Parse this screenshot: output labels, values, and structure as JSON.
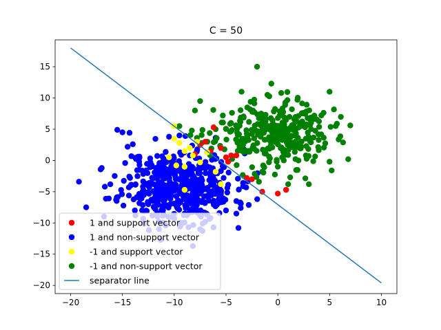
{
  "chart_data": {
    "type": "scatter",
    "title": "C = 50",
    "xlabel": "",
    "ylabel": "",
    "xlim": [
      -21.5,
      11.5
    ],
    "ylim": [
      -21.3,
      19.3
    ],
    "xticks": [
      -20,
      -15,
      -10,
      -5,
      0,
      5,
      10
    ],
    "yticks": [
      -20,
      -15,
      -10,
      -5,
      0,
      5,
      10,
      15
    ],
    "grid": false,
    "legend_position": "lower-left",
    "line": {
      "name": "separator line",
      "color": "#1f77b4",
      "x": [
        -20,
        10
      ],
      "y": [
        18.0,
        -19.6
      ]
    },
    "series": [
      {
        "name": "1 and non-support vector",
        "color": "#0000ff",
        "centroid": [
          -9.5,
          -4.0
        ],
        "spread": [
          2.7,
          2.9
        ],
        "count": 480,
        "seed": 11,
        "points": [
          [
            -19.2,
            -3.4
          ],
          [
            -18.5,
            -7.5
          ],
          [
            -17.0,
            -1.2
          ],
          [
            -16.7,
            -4.2
          ],
          [
            -15.5,
            4.9
          ],
          [
            -15.0,
            4.5
          ],
          [
            -14.5,
            2.2
          ],
          [
            -14.0,
            2.6
          ],
          [
            -13.5,
            0.6
          ],
          [
            -13.8,
            -8.0
          ],
          [
            -13.0,
            -9.3
          ],
          [
            -12.5,
            -7.0
          ],
          [
            -11.5,
            -9.8
          ],
          [
            -11.0,
            -8.7
          ],
          [
            -10.0,
            -9.3
          ],
          [
            -9.5,
            -10.0
          ],
          [
            -9.0,
            -8.5
          ],
          [
            -8.2,
            -13.7
          ],
          [
            -7.5,
            -11.0
          ],
          [
            -7.0,
            -9.8
          ],
          [
            -6.5,
            -9.2
          ],
          [
            -5.0,
            -8.0
          ],
          [
            -4.0,
            -8.5
          ],
          [
            -4.0,
            -6.5
          ],
          [
            -3.8,
            -10.8
          ],
          [
            -8.5,
            0.8
          ],
          [
            -9.5,
            4.0
          ],
          [
            -10.5,
            3.8
          ],
          [
            -7.0,
            -1.3
          ],
          [
            -6.5,
            -2.2
          ]
        ]
      },
      {
        "name": "-1 and non-support vector",
        "color": "#008000",
        "centroid": [
          -0.5,
          4.3
        ],
        "spread": [
          2.7,
          2.6
        ],
        "count": 330,
        "seed": 23,
        "points": [
          [
            -2.0,
            15.0
          ],
          [
            5.0,
            11.0
          ],
          [
            7.0,
            5.6
          ],
          [
            6.8,
            0.2
          ],
          [
            5.0,
            -0.2
          ],
          [
            5.2,
            -1.6
          ],
          [
            3.0,
            -3.8
          ],
          [
            1.0,
            -3.8
          ],
          [
            1.2,
            -2.7
          ],
          [
            -1.0,
            10.5
          ],
          [
            -3.5,
            11.0
          ],
          [
            -6.0,
            5.0
          ],
          [
            -6.8,
            3.0
          ],
          [
            -9.5,
            5.5
          ],
          [
            -8.3,
            4.8
          ],
          [
            -7.5,
            9.5
          ],
          [
            -8.0,
            8.0
          ],
          [
            -1.5,
            -1.8
          ],
          [
            0.0,
            -1.0
          ],
          [
            2.0,
            0.0
          ]
        ]
      },
      {
        "name": "1 and support vector",
        "color": "#ff0000",
        "points": [
          [
            -6.2,
            5.3
          ],
          [
            -7.0,
            3.0
          ],
          [
            -7.5,
            2.5
          ],
          [
            -6.5,
            1.5
          ],
          [
            -5.5,
            2.0
          ],
          [
            -5.0,
            0.5
          ],
          [
            -4.5,
            0.8
          ],
          [
            -4.0,
            0.8
          ],
          [
            -4.8,
            -0.2
          ],
          [
            -3.0,
            -2.8
          ],
          [
            -2.5,
            -3.0
          ],
          [
            -1.5,
            -5.0
          ],
          [
            0.0,
            -5.3
          ],
          [
            0.8,
            -4.7
          ],
          [
            -8.0,
            1.0
          ]
        ]
      },
      {
        "name": "-1 and support vector",
        "color": "#ffff00",
        "points": [
          [
            -10.0,
            5.5
          ],
          [
            -9.5,
            2.8
          ],
          [
            -9.0,
            1.5
          ],
          [
            -8.5,
            2.0
          ],
          [
            -10.0,
            3.5
          ],
          [
            -8.2,
            0.8
          ],
          [
            -7.5,
            -0.3
          ],
          [
            -10.5,
            0.5
          ],
          [
            -9.8,
            -0.8
          ],
          [
            -9.0,
            -1.0
          ],
          [
            -6.0,
            -1.8
          ],
          [
            -5.5,
            -3.8
          ],
          [
            -9.0,
            -4.7
          ],
          [
            -7.8,
            3.0
          ],
          [
            -6.8,
            1.3
          ]
        ]
      }
    ],
    "legend": [
      {
        "label": "1 and support vector",
        "color": "#ff0000",
        "kind": "marker"
      },
      {
        "label": "1 and non-support vector",
        "color": "#0000ff",
        "kind": "marker"
      },
      {
        "label": "-1 and support vector",
        "color": "#ffff00",
        "kind": "marker"
      },
      {
        "label": "-1 and non-support vector",
        "color": "#008000",
        "kind": "marker"
      },
      {
        "label": "separator line",
        "color": "#1f77b4",
        "kind": "line"
      }
    ]
  }
}
